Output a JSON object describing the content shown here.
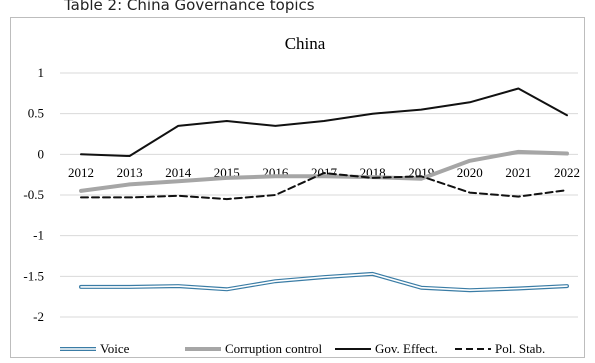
{
  "caption": "Table 2: China Governance topics",
  "chart_data": {
    "type": "line",
    "title": "China",
    "xlabel": "",
    "ylabel": "",
    "x": [
      "2012",
      "2013",
      "2014",
      "2015",
      "2016",
      "2017",
      "2018",
      "2019",
      "2020",
      "2021",
      "2022"
    ],
    "ylim": [
      -2,
      1
    ],
    "yticks": [
      "1",
      "0.5",
      "0",
      "-0.5",
      "-1",
      "-1.5",
      "-2"
    ],
    "grid": "horizontal",
    "legend_position": "bottom",
    "series": [
      {
        "name": "Voice",
        "style": "double-outline",
        "color": "#3a7ca5",
        "values": [
          -1.63,
          -1.63,
          -1.62,
          -1.66,
          -1.56,
          -1.51,
          -1.47,
          -1.64,
          -1.67,
          -1.65,
          -1.62
        ]
      },
      {
        "name": "Corruption control",
        "style": "thick-solid",
        "color": "#a6a6a6",
        "values": [
          -0.45,
          -0.37,
          -0.33,
          -0.29,
          -0.27,
          -0.27,
          -0.28,
          -0.3,
          -0.08,
          0.03,
          0.01
        ]
      },
      {
        "name": "Gov. Effect.",
        "style": "solid",
        "color": "#111111",
        "values": [
          0.0,
          -0.02,
          0.35,
          0.41,
          0.35,
          0.41,
          0.5,
          0.55,
          0.64,
          0.81,
          0.48
        ]
      },
      {
        "name": "Pol. Stab.",
        "style": "dashed",
        "color": "#111111",
        "values": [
          -0.53,
          -0.53,
          -0.51,
          -0.55,
          -0.5,
          -0.23,
          -0.29,
          -0.27,
          -0.47,
          -0.52,
          -0.44
        ]
      }
    ]
  }
}
